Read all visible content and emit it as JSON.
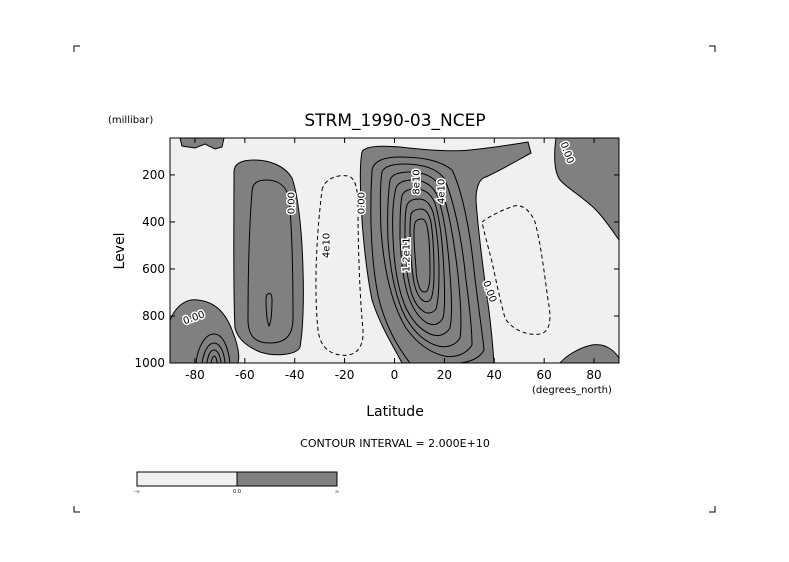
{
  "chart_data": {
    "type": "contour",
    "title": "STRM_1990-03_NCEP",
    "xlabel": "Latitude",
    "ylabel": "Level",
    "x_units": "(degrees_north)",
    "y_units": "(millibar)",
    "xlim": [
      -90,
      90
    ],
    "ylim": [
      1000,
      50
    ],
    "y_inverted": true,
    "x_ticks": [
      -80,
      -60,
      -40,
      -20,
      0,
      20,
      40,
      60,
      80
    ],
    "x_tick_labels": [
      "-80",
      "-60",
      "-40",
      "-20",
      "0",
      "20",
      "40",
      "60",
      "80"
    ],
    "y_ticks": [
      200,
      400,
      600,
      800,
      1000
    ],
    "y_tick_labels": [
      "200",
      "400",
      "600",
      "800",
      "1000"
    ],
    "contour_interval_text": "CONTOUR INTERVAL = 2.000E+10",
    "contour_interval": 20000000000,
    "contour_labels": [
      {
        "text": "0.00",
        "lat": -80,
        "lev": 820
      },
      {
        "text": "0.00",
        "lat": -40,
        "lev": 320
      },
      {
        "text": "4e10",
        "lat": -26,
        "lev": 500
      },
      {
        "text": "0.00",
        "lat": -12,
        "lev": 320
      },
      {
        "text": "8e10",
        "lat": 10,
        "lev": 230
      },
      {
        "text": "4e10",
        "lat": 20,
        "lev": 270
      },
      {
        "text": "1.2e11",
        "lat": 6,
        "lev": 540
      },
      {
        "text": "0.00",
        "lat": 37,
        "lev": 700
      },
      {
        "text": "0.00",
        "lat": 68,
        "lev": 110
      }
    ],
    "shading": {
      "below_zero": "#f0f0f0",
      "above_zero": "#808080"
    },
    "colorbar": {
      "labels": [
        "-∞",
        "0.0",
        "∞"
      ],
      "colors": [
        "#f0f0f0",
        "#808080"
      ]
    }
  }
}
